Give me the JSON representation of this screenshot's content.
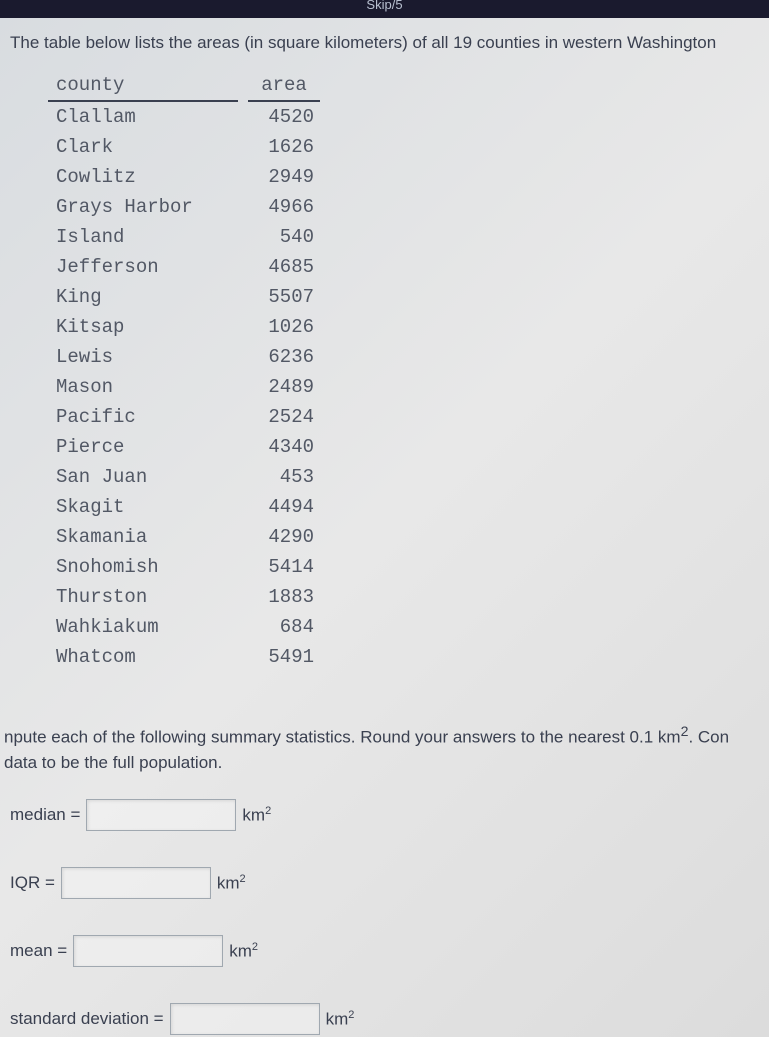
{
  "topbar": "Skip/5",
  "intro": "The table below lists the areas (in square kilometers) of all 19 counties in western Washington",
  "table": {
    "header_county": "county",
    "header_area": "area",
    "rows": [
      {
        "county": "Clallam",
        "area": "4520"
      },
      {
        "county": "Clark",
        "area": "1626"
      },
      {
        "county": "Cowlitz",
        "area": "2949"
      },
      {
        "county": "Grays Harbor",
        "area": "4966"
      },
      {
        "county": "Island",
        "area": "540"
      },
      {
        "county": "Jefferson",
        "area": "4685"
      },
      {
        "county": "King",
        "area": "5507"
      },
      {
        "county": "Kitsap",
        "area": "1026"
      },
      {
        "county": "Lewis",
        "area": "6236"
      },
      {
        "county": "Mason",
        "area": "2489"
      },
      {
        "county": "Pacific",
        "area": "2524"
      },
      {
        "county": "Pierce",
        "area": "4340"
      },
      {
        "county": "San Juan",
        "area": "453"
      },
      {
        "county": "Skagit",
        "area": "4494"
      },
      {
        "county": "Skamania",
        "area": "4290"
      },
      {
        "county": "Snohomish",
        "area": "5414"
      },
      {
        "county": "Thurston",
        "area": "1883"
      },
      {
        "county": "Wahkiakum",
        "area": "684"
      },
      {
        "county": "Whatcom",
        "area": "5491"
      }
    ]
  },
  "question_line1": "npute each of the following summary statistics. Round your answers to the nearest 0.1 km",
  "question_line1_end": ". Con",
  "question_line2": "data to be the full population.",
  "stats": {
    "median_label": "median =",
    "iqr_label": "IQR =",
    "mean_label": "mean =",
    "sd_label": "standard deviation =",
    "unit": "km",
    "unit_sup": "2"
  },
  "colors": {
    "text": "#3a4050",
    "mono_text": "#525865",
    "topbar_bg": "#1a1a2e",
    "topbar_text": "#b8c0d0",
    "input_border": "#a0a8b0"
  }
}
